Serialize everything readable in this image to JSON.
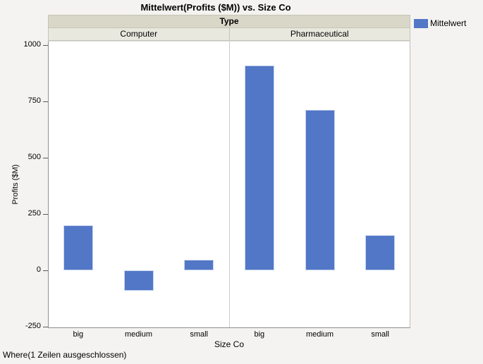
{
  "title": "Mittelwert(Profits ($M)) vs. Size Co",
  "panel_header": {
    "group_label": "Type",
    "groups": [
      "Computer",
      "Pharmaceutical"
    ]
  },
  "legend": {
    "label": "Mittelwert",
    "swatch_color": "#5277c6"
  },
  "y_axis": {
    "label": "Profits ($M)",
    "tick_labels": [
      "1000",
      "750",
      "500",
      "250",
      "0",
      "-250"
    ]
  },
  "x_axis": {
    "label": "Size Co",
    "categories": [
      "big",
      "medium",
      "small"
    ]
  },
  "footer": {
    "where_text": "Where(1 Zeilen ausgeschlossen)"
  },
  "colors": {
    "bar_fill": "#5277c6",
    "bar_border": "#c9d4ef",
    "band_top": "#d9d7c8",
    "band_bottom": "#e9e8df",
    "background": "#f4f3f1"
  },
  "chart_data": {
    "type": "bar",
    "title": "Mittelwert(Profits ($M)) vs. Size Co",
    "xlabel": "Size Co",
    "ylabel": "Profits ($M)",
    "group_label": "Type",
    "categories": [
      "big",
      "medium",
      "small"
    ],
    "series": [
      {
        "name": "Computer",
        "values": [
          200,
          -90,
          47
        ]
      },
      {
        "name": "Pharmaceutical",
        "values": [
          912,
          713,
          157
        ]
      }
    ],
    "measure": "Mittelwert",
    "yticks": [
      1000,
      750,
      500,
      250,
      0,
      -250
    ],
    "ylim": [
      -255,
      1020
    ],
    "grid": false,
    "legend_position": "top-right",
    "bar_color": "#5277c6"
  }
}
